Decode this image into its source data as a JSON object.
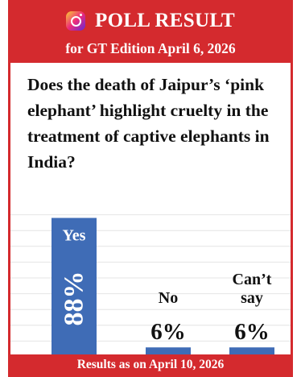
{
  "header": {
    "icon": "instagram-icon",
    "title": "POLL RESULT",
    "subtitle": "for GT Edition April 6, 2026"
  },
  "question": "Does the death of Jaipur’s ‘pink elephant’ highlight cruelty in the treatment of captive elephants in India?",
  "chart_data": {
    "type": "bar",
    "categories": [
      "Yes",
      "No",
      "Can’t say"
    ],
    "values": [
      88,
      6,
      6
    ],
    "value_labels": [
      "88%",
      "6%",
      "6%"
    ],
    "ylim": [
      0,
      100
    ],
    "grid": true,
    "bar_color": "#3f6cb6"
  },
  "footer": "Results as on April 10, 2026",
  "colors": {
    "accent": "#d42a2e",
    "bar": "#3f6cb6",
    "grid": "#e4e4e4"
  }
}
